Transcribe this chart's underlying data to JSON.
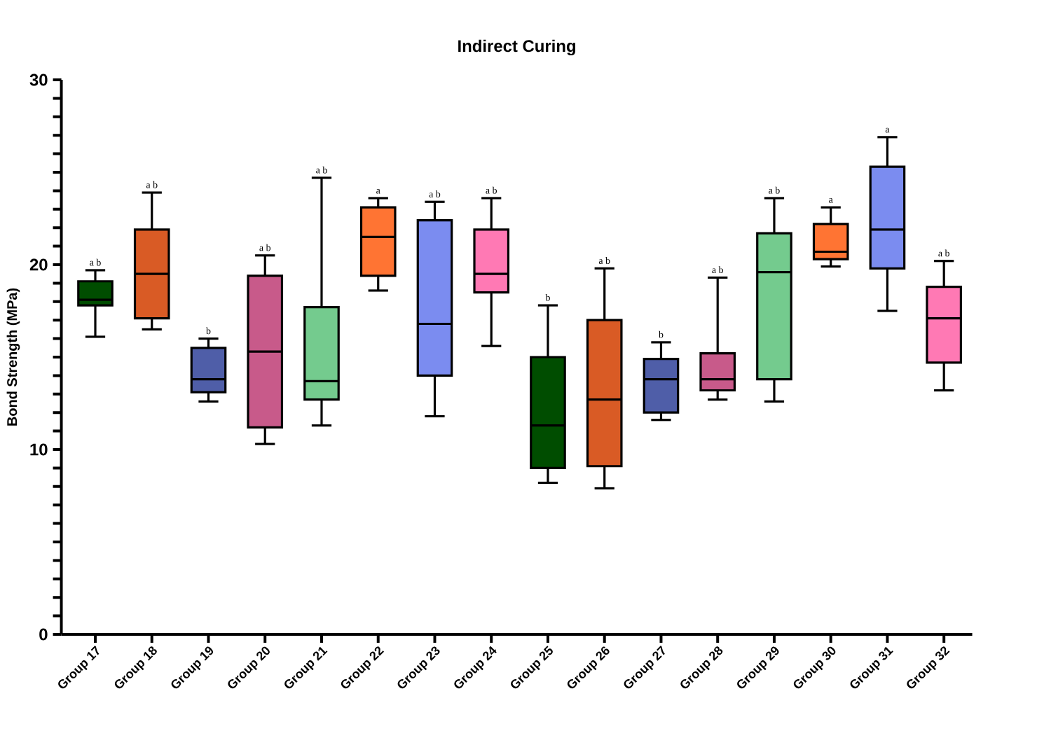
{
  "chart_data": {
    "type": "box",
    "title": "Indirect Curing",
    "ylabel": "Bond Strength (MPa)",
    "categories": [
      "Group 17",
      "Group 18",
      "Group 19",
      "Group 20",
      "Group 21",
      "Group 22",
      "Group 23",
      "Group 24",
      "Group 25",
      "Group 26",
      "Group 27",
      "Group 28",
      "Group 29",
      "Group 30",
      "Group 31",
      "Group 32"
    ],
    "colors": [
      "#004d00",
      "#d95b25",
      "#4f5ea8",
      "#c85a8a",
      "#74cb8e",
      "#ff7433",
      "#7b8cf0",
      "#ff79b4",
      "#004d00",
      "#d95b25",
      "#4f5ea8",
      "#c85a8a",
      "#74cb8e",
      "#ff7433",
      "#7b8cf0",
      "#ff79b4"
    ],
    "boxes": [
      {
        "low": 16.1,
        "q1": 17.8,
        "median": 18.1,
        "q3": 19.1,
        "high": 19.7
      },
      {
        "low": 16.5,
        "q1": 17.1,
        "median": 19.5,
        "q3": 21.9,
        "high": 23.9
      },
      {
        "low": 12.6,
        "q1": 13.1,
        "median": 13.8,
        "q3": 15.5,
        "high": 16.0
      },
      {
        "low": 10.3,
        "q1": 11.2,
        "median": 15.3,
        "q3": 19.4,
        "high": 20.5
      },
      {
        "low": 11.3,
        "q1": 12.7,
        "median": 13.7,
        "q3": 17.7,
        "high": 24.7
      },
      {
        "low": 18.6,
        "q1": 19.4,
        "median": 21.5,
        "q3": 23.1,
        "high": 23.6
      },
      {
        "low": 11.8,
        "q1": 14.0,
        "median": 16.8,
        "q3": 22.4,
        "high": 23.4
      },
      {
        "low": 15.6,
        "q1": 18.5,
        "median": 19.5,
        "q3": 21.9,
        "high": 23.6
      },
      {
        "low": 8.2,
        "q1": 9.0,
        "median": 11.3,
        "q3": 15.0,
        "high": 17.8
      },
      {
        "low": 7.9,
        "q1": 9.1,
        "median": 12.7,
        "q3": 17.0,
        "high": 19.8
      },
      {
        "low": 11.6,
        "q1": 12.0,
        "median": 13.8,
        "q3": 14.9,
        "high": 15.8
      },
      {
        "low": 12.7,
        "q1": 13.2,
        "median": 13.8,
        "q3": 15.2,
        "high": 19.3
      },
      {
        "low": 12.6,
        "q1": 13.8,
        "median": 19.6,
        "q3": 21.7,
        "high": 23.6
      },
      {
        "low": 19.9,
        "q1": 20.3,
        "median": 20.7,
        "q3": 22.2,
        "high": 23.1
      },
      {
        "low": 17.5,
        "q1": 19.8,
        "median": 21.9,
        "q3": 25.3,
        "high": 26.9
      },
      {
        "low": 13.2,
        "q1": 14.7,
        "median": 17.1,
        "q3": 18.8,
        "high": 20.2
      }
    ],
    "ylim": [
      0,
      30
    ],
    "yticks": [
      0,
      {
        "value": 1,
        "label": null
      },
      {
        "value": 2,
        "label": null
      },
      {
        "value": 3,
        "label": null
      },
      {
        "value": 4,
        "label": null
      },
      {
        "value": 5,
        "label": null
      },
      {
        "value": 6,
        "label": null
      },
      {
        "value": 7,
        "label": null
      },
      {
        "value": 8,
        "label": null
      },
      {
        "value": 9,
        "label": null
      },
      10,
      {
        "value": 11,
        "label": null
      },
      {
        "value": 12,
        "label": null
      },
      {
        "value": 13,
        "label": null
      },
      {
        "value": 14,
        "label": null
      },
      {
        "value": 15,
        "label": null
      },
      {
        "value": 16,
        "label": null
      },
      {
        "value": 17,
        "label": null
      },
      {
        "value": 18,
        "label": null
      },
      {
        "value": 19,
        "label": null
      },
      20,
      {
        "value": 21,
        "label": null
      },
      {
        "value": 22,
        "label": null
      },
      {
        "value": 23,
        "label": null
      },
      {
        "value": 24,
        "label": null
      },
      {
        "value": 25,
        "label": null
      },
      {
        "value": 26,
        "label": null
      },
      {
        "value": 27,
        "label": null
      },
      {
        "value": 28,
        "label": null
      },
      {
        "value": 29,
        "label": null
      },
      30
    ],
    "annotations": [
      "a b",
      "a b",
      "b",
      "a b",
      "a b",
      "a",
      "a b",
      "a b",
      "b",
      "a b",
      "b",
      "a b",
      "a b",
      "a",
      "a",
      "a b"
    ]
  }
}
